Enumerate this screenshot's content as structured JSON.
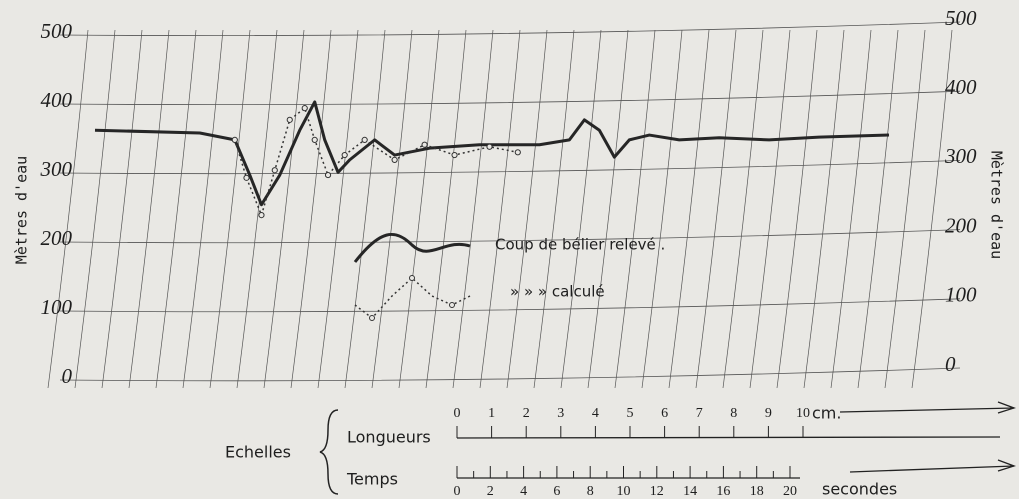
{
  "chart_data": {
    "type": "line",
    "ylabel": "Mètres d'eau",
    "y2label": "Mètres d'eau",
    "xlim": [
      0,
      48
    ],
    "ylim": [
      0,
      500
    ],
    "yticks": [
      0,
      100,
      200,
      300,
      400,
      500
    ],
    "y2lim": [
      0,
      500
    ],
    "y2ticks": [
      0,
      100,
      200,
      300,
      400,
      500
    ],
    "grid": true,
    "series": [
      {
        "name": "Coup de bélier relevé .",
        "color": "#262626",
        "line_style": "solid",
        "marker": "none",
        "x": [
          0,
          6.3,
          8.4,
          9.3,
          10.0,
          11.1,
          12.3,
          13.2,
          13.8,
          14.6,
          15.3,
          16.8,
          18.0,
          20.1,
          23.1,
          26.7,
          28.5,
          29.4,
          30.3,
          31.2,
          32.1,
          33.3,
          35.1,
          37.5,
          40.5,
          43.5,
          47.7
        ],
        "values": [
          362,
          358,
          348,
          297,
          254,
          297,
          362,
          403,
          348,
          301,
          319,
          348,
          326,
          336,
          341,
          341,
          348,
          377,
          362,
          323,
          348,
          355,
          348,
          351,
          348,
          352,
          355
        ]
      },
      {
        "name": "» » » calculé",
        "color": "#333333",
        "line_style": "dotted",
        "marker": "circle",
        "x": [
          8.4,
          9.1,
          10.0,
          10.8,
          11.7,
          12.6,
          13.2,
          14.0,
          15.0,
          16.2,
          18.0,
          19.8,
          21.6,
          23.7,
          25.4
        ],
        "values": [
          348,
          293,
          239,
          304,
          377,
          394,
          348,
          297,
          326,
          348,
          319,
          341,
          326,
          338,
          330
        ]
      }
    ],
    "scales": {
      "title": "Echelles",
      "lengths": {
        "label": "Longueurs",
        "ticks": [
          0,
          1,
          2,
          3,
          4,
          5,
          6,
          7,
          8,
          9,
          10
        ],
        "unit": "cm."
      },
      "time": {
        "label": "Temps",
        "ticks": [
          0,
          2,
          4,
          6,
          8,
          10,
          12,
          14,
          16,
          18,
          20
        ],
        "unit": "secondes"
      }
    }
  }
}
